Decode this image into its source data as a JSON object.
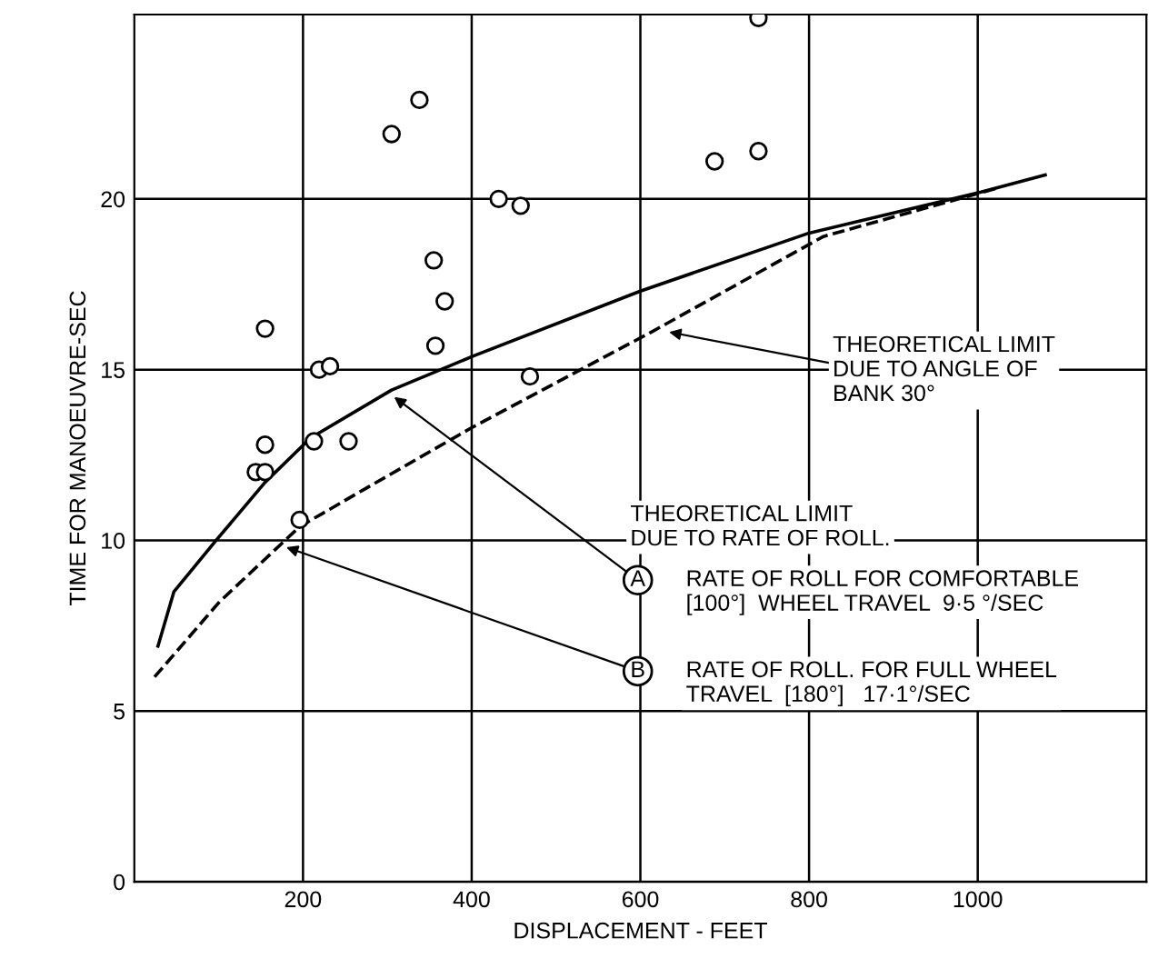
{
  "chart_data": {
    "type": "scatter",
    "xlabel": "DISPLACEMENT - FEET",
    "ylabel": "TIME FOR MANOEUVRE-SEC",
    "xlim": [
      0,
      1200
    ],
    "xticks": [
      200,
      400,
      600,
      800,
      1000
    ],
    "ylim": [
      0,
      25.4
    ],
    "yticks": [
      0,
      5,
      10,
      15,
      20
    ],
    "grid": true,
    "series": [
      {
        "marker": "circle",
        "color": "#000000",
        "x": [
          155,
          305,
          338,
          432,
          458,
          355,
          368,
          357,
          469,
          219,
          232,
          155,
          144,
          155,
          213,
          254,
          196,
          740,
          688,
          740
        ],
        "values": [
          16.2,
          21.9,
          22.9,
          20.0,
          19.8,
          18.2,
          17.0,
          15.7,
          14.8,
          15.0,
          15.1,
          12.8,
          12.0,
          12.0,
          12.9,
          12.9,
          10.6,
          25.3,
          21.1,
          21.4
        ]
      },
      {
        "type": "line",
        "color": "#000000",
        "line_style": "solid",
        "x": [
          28,
          47,
          97,
          155,
          209,
          305,
          402,
          600,
          800,
          1004,
          1080
        ],
        "values": [
          6.9,
          8.5,
          10.0,
          11.7,
          13.0,
          14.4,
          15.4,
          17.3,
          19.0,
          20.2,
          20.7
        ]
      },
      {
        "type": "line",
        "color": "#000000",
        "line_style": "dashed",
        "x": [
          24,
          101,
          196,
          273,
          400,
          613,
          817,
          1021
        ],
        "values": [
          6.0,
          8.2,
          10.4,
          11.5,
          13.3,
          16.1,
          18.9,
          20.3
        ]
      }
    ],
    "annotations": [
      {
        "text": "THEORETICAL LIMIT\nDUE TO ANGLE OF\nBANK 30°",
        "x": 634,
        "y": 16.1
      },
      "THEORETICAL LIMIT\nDUE TO RATE OF ROLL.",
      {
        "text": "A",
        "x": 308,
        "y": 14.2
      },
      "RATE OF ROLL FOR COMFORTABLE\n[100°]  WHEEL TRAVEL  9·5 °/SEC",
      {
        "text": "B",
        "x": 180,
        "y": 9.8
      },
      "RATE OF ROLL. FOR FULL WHEEL\nTRAVEL  [180°]   17·1°/SEC"
    ]
  }
}
